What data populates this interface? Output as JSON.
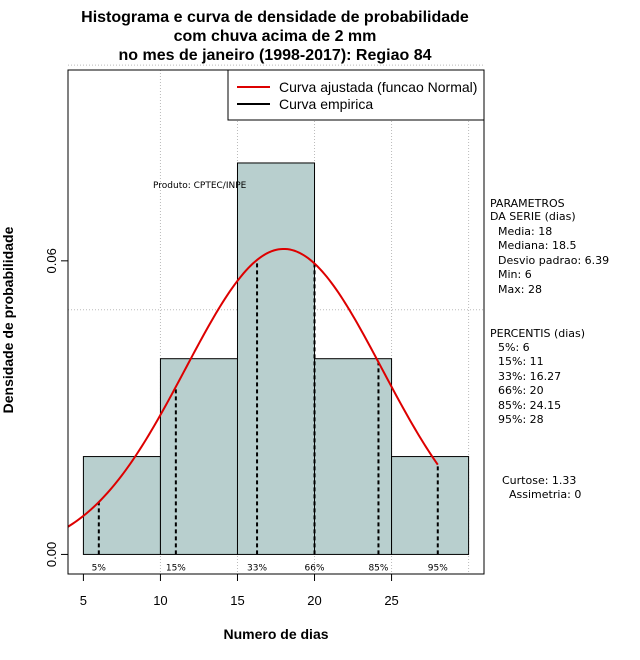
{
  "chart_data": {
    "type": "histogram",
    "title_lines": [
      "Histograma e curva de densidade de probabilidade",
      "com chuva acima de 2 mm",
      "no mes de janeiro (1998-2017): Regiao 84"
    ],
    "xlabel": "Numero de dias",
    "ylabel": "Densidade de probabilidade",
    "xlim": [
      4,
      31
    ],
    "ylim": [
      -0.004,
      0.099
    ],
    "x_ticks": [
      5,
      10,
      15,
      20,
      25
    ],
    "y_ticks": [
      0.0,
      0.06
    ],
    "y_tick_labels": [
      "0.00",
      "0.06"
    ],
    "grid_x": [
      10,
      15,
      20,
      25,
      30
    ],
    "grid_y": [
      0.05,
      0.1
    ],
    "bins": [
      {
        "from": 5,
        "to": 10,
        "density": 0.02
      },
      {
        "from": 10,
        "to": 15,
        "density": 0.04
      },
      {
        "from": 15,
        "to": 20,
        "density": 0.08
      },
      {
        "from": 20,
        "to": 25,
        "density": 0.04
      },
      {
        "from": 25,
        "to": 30,
        "density": 0.02
      }
    ],
    "normal_curve": {
      "mean": 18,
      "sd": 6.39,
      "x_from": 4,
      "x_to": 28
    },
    "percentile_lines": [
      {
        "label": "5%",
        "x": 6
      },
      {
        "label": "15%",
        "x": 11
      },
      {
        "label": "33%",
        "x": 16.27
      },
      {
        "label": "66%",
        "x": 20
      },
      {
        "label": "85%",
        "x": 24.15
      },
      {
        "label": "95%",
        "x": 28
      }
    ],
    "legend": {
      "position": "top-right",
      "entries": [
        {
          "label": "Curva ajustada (funcao Normal)",
          "color": "#dd0000"
        },
        {
          "label": "Curva empirica",
          "color": "#000000"
        }
      ]
    },
    "annotation": "Produto: CPTEC/INPE",
    "colors": {
      "bar_fill": "#b8cfce",
      "curve": "#dd0000",
      "grid": "#bbbbbb"
    }
  },
  "stats": {
    "params_title": [
      "PARAMETROS",
      "DA SERIE (dias)"
    ],
    "params": [
      "Media: 18",
      "Mediana: 18.5",
      "Desvio padrao: 6.39",
      "Min: 6",
      "Max: 28"
    ],
    "percentis_title": "PERCENTIS (dias)",
    "percentis": [
      "5%: 6",
      "15%: 11",
      "33%: 16.27",
      "66%: 20",
      "85%: 24.15",
      "95%: 28"
    ],
    "extra": [
      "Curtose: 1.33",
      "Assimetria: 0"
    ]
  }
}
